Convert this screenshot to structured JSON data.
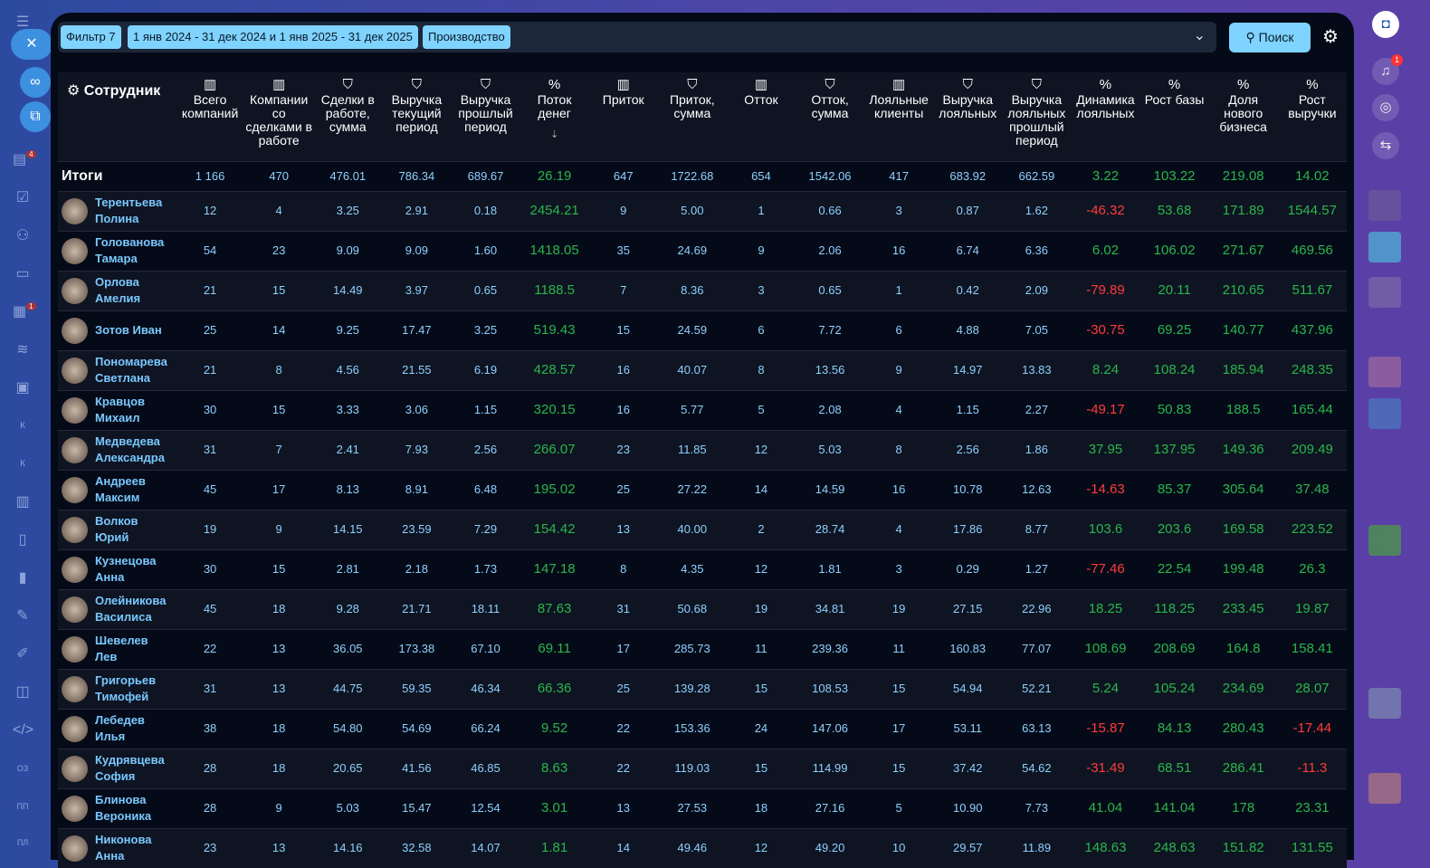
{
  "filters": {
    "chips": [
      "Фильтр 7",
      "1 янв 2024 - 31 дек 2024 и 1 янв 2025 - 31 дек 2025",
      "Производство"
    ],
    "search_label": "Поиск"
  },
  "notifications": {
    "badge": "1"
  },
  "sidebar": {
    "badges": [
      "4",
      "1"
    ],
    "letters": [
      "К",
      "К",
      "ОЗ",
      "ПП",
      "ПЛ"
    ]
  },
  "colors": {
    "background": "#050a18",
    "accent": "#7fd3ff",
    "positive": "#2ab54c",
    "negative": "#ff3b3b",
    "value": "#8fd0ff"
  },
  "table": {
    "employee_header": "Сотрудник",
    "columns": [
      {
        "label": "Всего компаний",
        "icon": "building-icon"
      },
      {
        "label": "Компании со сделками в работе",
        "icon": "building-icon"
      },
      {
        "label": "Сделки в работе, сумма",
        "icon": "handshake-icon"
      },
      {
        "label": "Выручка текущий период",
        "icon": "handshake-icon"
      },
      {
        "label": "Выручка прошлый период",
        "icon": "handshake-icon"
      },
      {
        "label": "Поток денег",
        "icon": "percent-icon"
      },
      {
        "label": "Приток",
        "icon": "building-icon"
      },
      {
        "label": "Приток, сумма",
        "icon": "handshake-icon"
      },
      {
        "label": "Отток",
        "icon": "building-icon"
      },
      {
        "label": "Отток, сумма",
        "icon": "handshake-icon"
      },
      {
        "label": "Лояльные клиенты",
        "icon": "building-icon"
      },
      {
        "label": "Выручка лояльных",
        "icon": "handshake-icon"
      },
      {
        "label": "Выручка лояльных прошлый период",
        "icon": "handshake-icon"
      },
      {
        "label": "Динамика лояльных",
        "icon": "percent-icon"
      },
      {
        "label": "Рост базы",
        "icon": "percent-icon"
      },
      {
        "label": "Доля нового бизнеса",
        "icon": "percent-icon"
      },
      {
        "label": "Рост выручки",
        "icon": "percent-icon"
      }
    ],
    "sorted_column": "Поток денег",
    "totals": {
      "label": "Итоги",
      "values": [
        "1 166",
        "470",
        "476.01",
        "786.34",
        "689.67",
        "26.19",
        "647",
        "1722.68",
        "654",
        "1542.06",
        "417",
        "683.92",
        "662.59",
        "3.22",
        "103.22",
        "219.08",
        "14.02"
      ]
    },
    "rows": [
      {
        "name": "Терентьева Полина",
        "values": [
          "12",
          "4",
          "3.25",
          "2.91",
          "0.18",
          "2454.21",
          "9",
          "5.00",
          "1",
          "0.66",
          "3",
          "0.87",
          "1.62",
          "-46.32",
          "53.68",
          "171.89",
          "1544.57"
        ]
      },
      {
        "name": "Голованова Тамара",
        "values": [
          "54",
          "23",
          "9.09",
          "9.09",
          "1.60",
          "1418.05",
          "35",
          "24.69",
          "9",
          "2.06",
          "16",
          "6.74",
          "6.36",
          "6.02",
          "106.02",
          "271.67",
          "469.56"
        ]
      },
      {
        "name": "Орлова Амелия",
        "values": [
          "21",
          "15",
          "14.49",
          "3.97",
          "0.65",
          "1188.5",
          "7",
          "8.36",
          "3",
          "0.65",
          "1",
          "0.42",
          "2.09",
          "-79.89",
          "20.11",
          "210.65",
          "511.67"
        ]
      },
      {
        "name": "Зотов Иван",
        "values": [
          "25",
          "14",
          "9.25",
          "17.47",
          "3.25",
          "519.43",
          "15",
          "24.59",
          "6",
          "7.72",
          "6",
          "4.88",
          "7.05",
          "-30.75",
          "69.25",
          "140.77",
          "437.96"
        ]
      },
      {
        "name": "Пономарева Светлана",
        "values": [
          "21",
          "8",
          "4.56",
          "21.55",
          "6.19",
          "428.57",
          "16",
          "40.07",
          "8",
          "13.56",
          "9",
          "14.97",
          "13.83",
          "8.24",
          "108.24",
          "185.94",
          "248.35"
        ]
      },
      {
        "name": "Кравцов Михаил",
        "values": [
          "30",
          "15",
          "3.33",
          "3.06",
          "1.15",
          "320.15",
          "16",
          "5.77",
          "5",
          "2.08",
          "4",
          "1.15",
          "2.27",
          "-49.17",
          "50.83",
          "188.5",
          "165.44"
        ]
      },
      {
        "name": "Медведева Александра",
        "values": [
          "31",
          "7",
          "2.41",
          "7.93",
          "2.56",
          "266.07",
          "23",
          "11.85",
          "12",
          "5.03",
          "8",
          "2.56",
          "1.86",
          "37.95",
          "137.95",
          "149.36",
          "209.49"
        ]
      },
      {
        "name": "Андреев Максим",
        "values": [
          "45",
          "17",
          "8.13",
          "8.91",
          "6.48",
          "195.02",
          "25",
          "27.22",
          "14",
          "14.59",
          "16",
          "10.78",
          "12.63",
          "-14.63",
          "85.37",
          "305.64",
          "37.48"
        ]
      },
      {
        "name": "Волков Юрий",
        "values": [
          "19",
          "9",
          "14.15",
          "23.59",
          "7.29",
          "154.42",
          "13",
          "40.00",
          "2",
          "28.74",
          "4",
          "17.86",
          "8.77",
          "103.6",
          "203.6",
          "169.58",
          "223.52"
        ]
      },
      {
        "name": "Кузнецова Анна",
        "values": [
          "30",
          "15",
          "2.81",
          "2.18",
          "1.73",
          "147.18",
          "8",
          "4.35",
          "12",
          "1.81",
          "3",
          "0.29",
          "1.27",
          "-77.46",
          "22.54",
          "199.48",
          "26.3"
        ]
      },
      {
        "name": "Олейникова Василиса",
        "values": [
          "45",
          "18",
          "9.28",
          "21.71",
          "18.11",
          "87.63",
          "31",
          "50.68",
          "19",
          "34.81",
          "19",
          "27.15",
          "22.96",
          "18.25",
          "118.25",
          "233.45",
          "19.87"
        ]
      },
      {
        "name": "Шевелев Лев",
        "values": [
          "22",
          "13",
          "36.05",
          "173.38",
          "67.10",
          "69.11",
          "17",
          "285.73",
          "11",
          "239.36",
          "11",
          "160.83",
          "77.07",
          "108.69",
          "208.69",
          "164.8",
          "158.41"
        ]
      },
      {
        "name": "Григорьев Тимофей",
        "values": [
          "31",
          "13",
          "44.75",
          "59.35",
          "46.34",
          "66.36",
          "25",
          "139.28",
          "15",
          "108.53",
          "15",
          "54.94",
          "52.21",
          "5.24",
          "105.24",
          "234.69",
          "28.07"
        ]
      },
      {
        "name": "Лебедев Илья",
        "values": [
          "38",
          "18",
          "54.80",
          "54.69",
          "66.24",
          "9.52",
          "22",
          "153.36",
          "24",
          "147.06",
          "17",
          "53.11",
          "63.13",
          "-15.87",
          "84.13",
          "280.43",
          "-17.44"
        ]
      },
      {
        "name": "Кудрявцева София",
        "values": [
          "28",
          "18",
          "20.65",
          "41.56",
          "46.85",
          "8.63",
          "22",
          "119.03",
          "15",
          "114.99",
          "15",
          "37.42",
          "54.62",
          "-31.49",
          "68.51",
          "286.41",
          "-11.3"
        ]
      },
      {
        "name": "Блинова Вероника",
        "values": [
          "28",
          "9",
          "5.03",
          "15.47",
          "12.54",
          "3.01",
          "13",
          "27.53",
          "18",
          "27.16",
          "5",
          "10.90",
          "7.73",
          "41.04",
          "141.04",
          "178",
          "23.31"
        ]
      },
      {
        "name": "Никонова Анна",
        "values": [
          "23",
          "13",
          "14.16",
          "32.58",
          "14.07",
          "1.81",
          "14",
          "49.46",
          "12",
          "49.20",
          "10",
          "29.57",
          "11.89",
          "148.63",
          "248.63",
          "151.82",
          "131.55"
        ]
      }
    ]
  }
}
